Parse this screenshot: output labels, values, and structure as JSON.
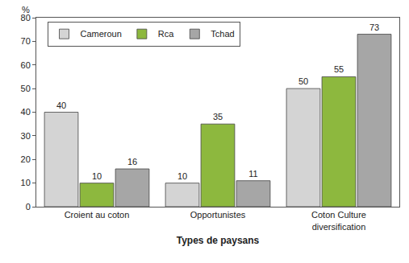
{
  "chart_data": {
    "type": "bar",
    "x_label": "Types de paysans",
    "y_label": "%",
    "categories": [
      "Croient au coton",
      "Opportunistes",
      "Coton Culture\ndiversification"
    ],
    "series": [
      {
        "name": "Cameroun",
        "color": "#d4d4d4",
        "values": [
          40,
          10,
          50
        ]
      },
      {
        "name": "Rca",
        "color": "#8db83e",
        "values": [
          10,
          35,
          55
        ]
      },
      {
        "name": "Tchad",
        "color": "#a6a6a6",
        "values": [
          16,
          11,
          73
        ]
      }
    ],
    "ylim": [
      0,
      80
    ],
    "yticks": [
      0,
      10,
      20,
      30,
      40,
      50,
      60,
      70,
      80
    ],
    "grid": false,
    "legend": "upper left",
    "data_labels": true
  }
}
